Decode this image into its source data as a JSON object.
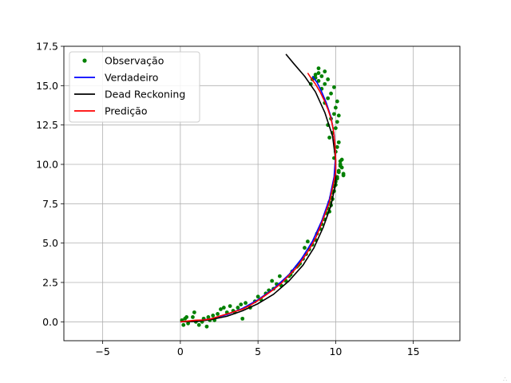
{
  "chart_data": {
    "type": "line",
    "title": "",
    "xlabel": "",
    "ylabel": "",
    "xlim": [
      -7.5,
      18
    ],
    "ylim": [
      -1.2,
      17.5
    ],
    "x_ticks": [
      -5,
      0,
      5,
      10,
      15
    ],
    "y_ticks": [
      0.0,
      2.5,
      5.0,
      7.5,
      10.0,
      12.5,
      15.0,
      17.5
    ],
    "x_tick_labels": [
      "−5",
      "0",
      "5",
      "10",
      "15"
    ],
    "y_tick_labels": [
      "0.0",
      "2.5",
      "5.0",
      "7.5",
      "10.0",
      "12.5",
      "15.0",
      "17.5"
    ],
    "grid": true,
    "legend_position": "top-left",
    "legend": [
      {
        "label": "Observação",
        "color": "#008000",
        "kind": "marker"
      },
      {
        "label": "Verdadeiro",
        "color": "#0000ff",
        "kind": "line"
      },
      {
        "label": "Dead Reckoning",
        "color": "#000000",
        "kind": "line"
      },
      {
        "label": "Predição",
        "color": "#ff0000",
        "kind": "line"
      }
    ],
    "series": [
      {
        "name": "Observação",
        "style": "scatter",
        "color": "#008000",
        "x": [
          0.1,
          0.3,
          0.5,
          0.8,
          1.0,
          1.2,
          1.5,
          1.7,
          1.9,
          2.1,
          0.2,
          0.4,
          0.9,
          1.4,
          2.4,
          2.6,
          2.8,
          3.0,
          3.2,
          3.4,
          3.7,
          3.9,
          4.2,
          4.5,
          4.8,
          5.0,
          5.2,
          5.5,
          5.7,
          6.0,
          6.2,
          6.5,
          6.8,
          7.0,
          7.2,
          7.5,
          7.7,
          7.9,
          8.1,
          8.3,
          8.5,
          8.7,
          8.8,
          9.0,
          9.1,
          9.3,
          9.4,
          9.5,
          9.6,
          9.7,
          9.8,
          9.9,
          10.0,
          10.1,
          10.2,
          10.3,
          10.4,
          10.5,
          9.6,
          9.7,
          9.8,
          9.9,
          10.0,
          10.1,
          10.2,
          10.3,
          9.9,
          10.0,
          10.1,
          10.2,
          10.3,
          10.4,
          10.5,
          9.6,
          9.8,
          10.0,
          10.1,
          10.2,
          9.5,
          9.7,
          9.9,
          10.0,
          10.1,
          9.3,
          9.5,
          9.7,
          9.9,
          9.1,
          9.3,
          9.5,
          8.9,
          9.1,
          9.3,
          8.7,
          8.9,
          8.5,
          8.7,
          8.9,
          8.4,
          8.6,
          4.0,
          3.5,
          2.2,
          1.8,
          5.9,
          6.4,
          7.1,
          7.6,
          8.0,
          8.2
        ],
        "y": [
          0.1,
          0.2,
          -0.1,
          0.3,
          0.0,
          -0.2,
          0.2,
          -0.3,
          0.1,
          0.4,
          -0.2,
          0.3,
          0.6,
          0.0,
          0.5,
          0.8,
          0.9,
          0.6,
          1.0,
          0.7,
          0.9,
          1.1,
          1.2,
          0.9,
          1.3,
          1.6,
          1.4,
          1.8,
          2.0,
          2.1,
          2.4,
          2.3,
          2.6,
          2.9,
          3.2,
          3.5,
          3.7,
          4.0,
          4.3,
          4.6,
          4.9,
          5.2,
          5.6,
          5.9,
          6.2,
          6.5,
          6.9,
          7.2,
          7.6,
          7.9,
          8.2,
          8.6,
          8.9,
          9.2,
          9.6,
          10.0,
          10.3,
          9.3,
          7.0,
          7.4,
          7.8,
          8.3,
          8.7,
          9.1,
          9.5,
          9.9,
          10.4,
          10.8,
          11.1,
          11.4,
          10.2,
          9.8,
          9.4,
          11.7,
          12.0,
          12.3,
          12.7,
          13.1,
          12.5,
          12.9,
          13.2,
          13.6,
          14.0,
          13.9,
          14.2,
          14.5,
          14.9,
          14.8,
          15.1,
          15.4,
          15.3,
          15.6,
          15.9,
          15.5,
          15.8,
          15.4,
          15.7,
          16.1,
          15.1,
          15.5,
          0.2,
          0.6,
          0.1,
          0.3,
          2.6,
          2.9,
          3.0,
          3.6,
          4.7,
          5.1
        ]
      },
      {
        "name": "Verdadeiro",
        "style": "line",
        "color": "#0000ff",
        "x": [
          0,
          1,
          2,
          3,
          4,
          5,
          6,
          7,
          7.8,
          8.5,
          9.1,
          9.6,
          9.9,
          10.0,
          9.9,
          9.7,
          9.4,
          9.1,
          8.8,
          8.5
        ],
        "y": [
          0,
          0.05,
          0.2,
          0.45,
          0.85,
          1.4,
          2.1,
          3.0,
          4.0,
          5.1,
          6.4,
          7.8,
          9.2,
          10.6,
          11.9,
          13.0,
          13.9,
          14.6,
          15.2,
          15.6
        ]
      },
      {
        "name": "Dead Reckoning",
        "style": "line",
        "color": "#000000",
        "x": [
          0,
          1,
          2,
          3,
          4,
          5,
          6,
          7,
          7.9,
          8.6,
          9.2,
          9.7,
          10.0,
          10.0,
          9.8,
          9.3,
          8.7,
          8.0,
          7.3,
          6.8
        ],
        "y": [
          0,
          0.02,
          0.15,
          0.35,
          0.7,
          1.15,
          1.75,
          2.6,
          3.6,
          4.7,
          6.0,
          7.4,
          8.8,
          10.3,
          11.8,
          13.3,
          14.6,
          15.6,
          16.4,
          17.0
        ]
      },
      {
        "name": "Predição",
        "style": "line",
        "color": "#ff0000",
        "x": [
          0,
          0.5,
          1,
          1.5,
          2,
          2.5,
          3,
          3.5,
          4,
          4.5,
          5,
          5.5,
          6,
          6.5,
          7,
          7.5,
          7.9,
          8.3,
          8.7,
          9.0,
          9.3,
          9.6,
          9.8,
          10.0,
          10.0,
          9.95,
          9.85,
          9.7,
          9.5,
          9.25,
          9.0,
          8.7,
          8.4,
          8.2
        ],
        "y": [
          0,
          0.05,
          0.1,
          0.12,
          0.2,
          0.35,
          0.5,
          0.65,
          0.8,
          1.05,
          1.35,
          1.7,
          2.05,
          2.45,
          2.95,
          3.45,
          4.0,
          4.6,
          5.3,
          6.0,
          6.8,
          7.6,
          8.5,
          9.5,
          10.4,
          11.3,
          12.2,
          12.9,
          13.5,
          14.1,
          14.6,
          15.1,
          15.5,
          15.8
        ]
      }
    ]
  },
  "watermark": "∴"
}
